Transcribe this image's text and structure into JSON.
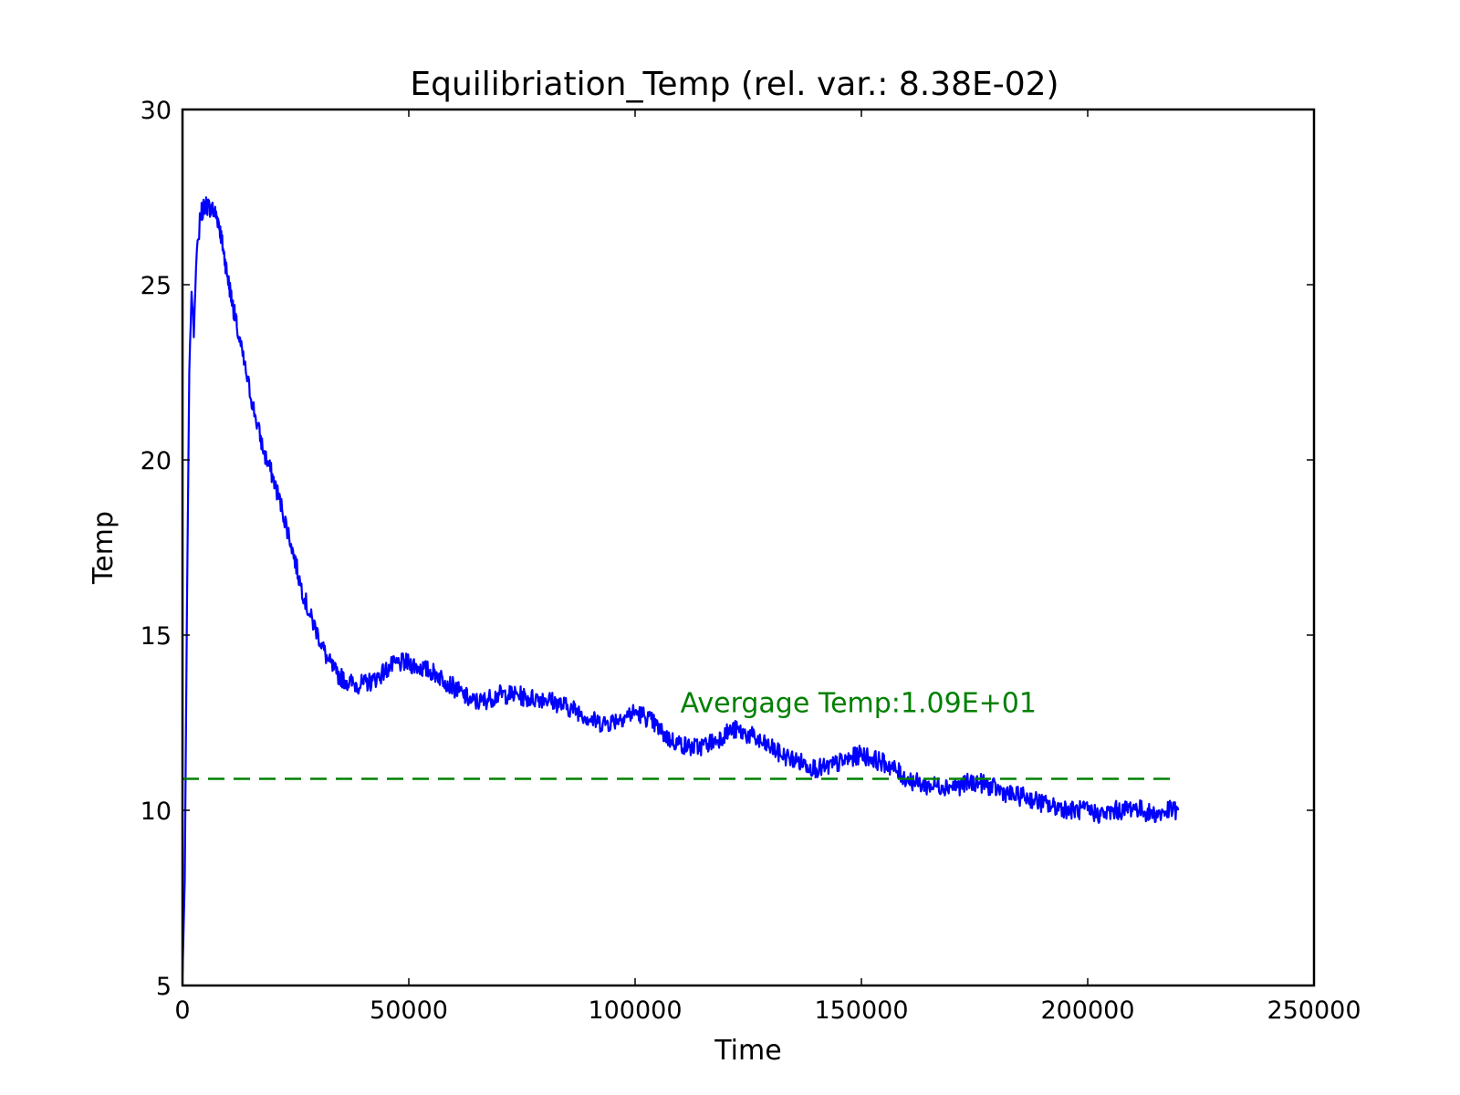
{
  "chart_data": {
    "type": "line",
    "title": "Equilibriation_Temp (rel. var.: 8.38E-02)",
    "xlabel": "Time",
    "ylabel": "Temp",
    "xlim": [
      0,
      250000
    ],
    "ylim": [
      5,
      30
    ],
    "xticks": [
      0,
      50000,
      100000,
      150000,
      200000,
      250000
    ],
    "xtick_labels": [
      "0",
      "50000",
      "100000",
      "150000",
      "200000",
      "250000"
    ],
    "yticks": [
      5,
      10,
      15,
      20,
      25,
      30
    ],
    "ytick_labels": [
      "5",
      "10",
      "15",
      "20",
      "25",
      "30"
    ],
    "grid": false,
    "legend": "none",
    "colors": {
      "series": "#0000ff",
      "average": "#008000"
    },
    "series": [
      {
        "style": "solid",
        "x": [
          0,
          500,
          1000,
          1500,
          2000,
          2500,
          3000,
          3500,
          4000,
          5000,
          6000,
          7000,
          8000,
          9000,
          10000,
          11000,
          12000,
          14000,
          16000,
          18000,
          20000,
          22000,
          24000,
          26000,
          28000,
          30000,
          32000,
          34000,
          36000,
          38000,
          40000,
          42000,
          44000,
          46000,
          48000,
          50000,
          52000,
          54000,
          56000,
          58000,
          60000,
          62000,
          64000,
          66000,
          68000,
          70000,
          72000,
          74000,
          76000,
          78000,
          80000,
          82000,
          84000,
          86000,
          88000,
          90000,
          92000,
          94000,
          96000,
          98000,
          100000,
          102000,
          104000,
          106000,
          108000,
          110000,
          112000,
          114000,
          116000,
          118000,
          120000,
          122000,
          124000,
          126000,
          128000,
          130000,
          132000,
          134000,
          136000,
          138000,
          140000,
          142000,
          144000,
          146000,
          148000,
          150000,
          152000,
          154000,
          156000,
          158000,
          160000,
          162000,
          164000,
          166000,
          168000,
          170000,
          172000,
          174000,
          176000,
          178000,
          180000,
          182000,
          184000,
          186000,
          188000,
          190000,
          192000,
          194000,
          196000,
          198000,
          200000,
          202000,
          204000,
          206000,
          208000,
          210000,
          212000,
          214000,
          216000,
          218000,
          220000
        ],
        "y": [
          5.3,
          8.0,
          16.0,
          22.5,
          24.8,
          23.5,
          25.5,
          26.3,
          27.0,
          27.3,
          27.2,
          27.1,
          26.8,
          26.0,
          25.2,
          24.5,
          23.8,
          22.5,
          21.3,
          20.2,
          19.5,
          18.6,
          17.6,
          16.5,
          15.6,
          15.0,
          14.3,
          13.9,
          13.7,
          13.6,
          13.6,
          13.7,
          13.9,
          14.1,
          14.2,
          14.2,
          14.1,
          14.0,
          13.9,
          13.7,
          13.5,
          13.3,
          13.1,
          13.1,
          13.2,
          13.3,
          13.3,
          13.3,
          13.2,
          13.2,
          13.2,
          13.1,
          13.0,
          12.9,
          12.8,
          12.6,
          12.5,
          12.5,
          12.6,
          12.7,
          12.8,
          12.7,
          12.5,
          12.2,
          12.0,
          11.9,
          11.8,
          11.8,
          11.9,
          12.0,
          12.2,
          12.3,
          12.2,
          12.1,
          11.9,
          11.8,
          11.6,
          11.5,
          11.4,
          11.3,
          11.2,
          11.2,
          11.3,
          11.4,
          11.5,
          11.6,
          11.5,
          11.4,
          11.3,
          11.1,
          10.9,
          10.8,
          10.7,
          10.7,
          10.7,
          10.7,
          10.7,
          10.8,
          10.8,
          10.7,
          10.6,
          10.5,
          10.4,
          10.4,
          10.3,
          10.2,
          10.1,
          10.1,
          10.0,
          10.0,
          10.0,
          9.9,
          9.9,
          10.0,
          10.0,
          10.1,
          10.0,
          9.9,
          9.9,
          10.0,
          10.0
        ]
      },
      {
        "style": "dashed",
        "x": [
          0,
          220000
        ],
        "y": [
          10.9,
          10.9
        ]
      }
    ],
    "annotations": [
      {
        "text": "Avergage Temp:1.09E+01",
        "x": 110000,
        "y": 12.8
      }
    ]
  }
}
